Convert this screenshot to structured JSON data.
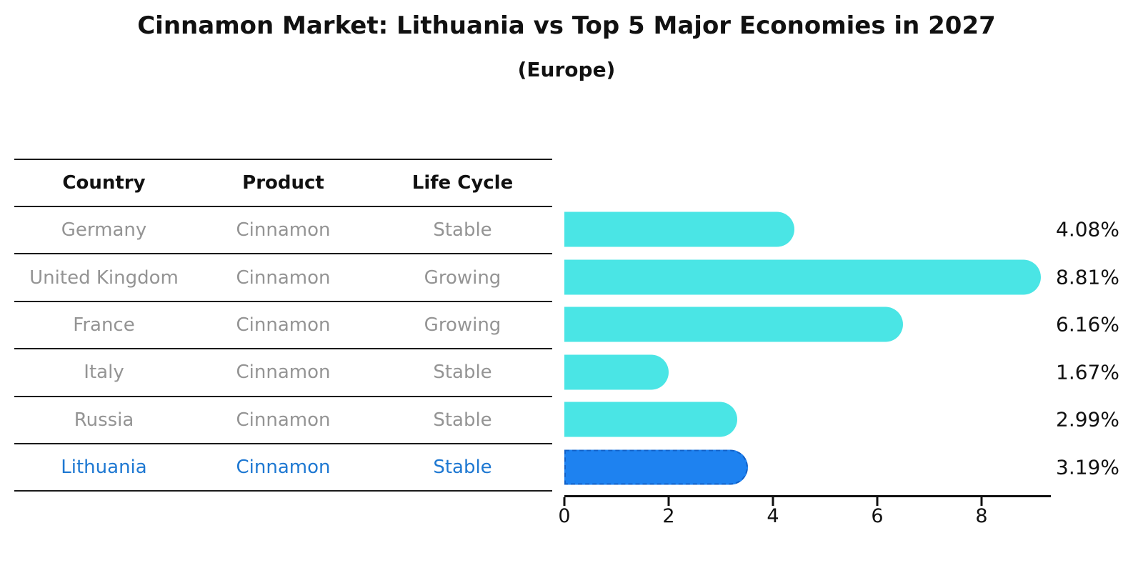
{
  "title": "Cinnamon Market: Lithuania vs Top 5 Major Economies in 2027",
  "subtitle": "(Europe)",
  "table": {
    "headers": [
      "Country",
      "Product",
      "Life Cycle"
    ],
    "rows": [
      {
        "country": "Germany",
        "product": "Cinnamon",
        "life_cycle": "Stable",
        "highlight": false
      },
      {
        "country": "United Kingdom",
        "product": "Cinnamon",
        "life_cycle": "Growing",
        "highlight": false
      },
      {
        "country": "France",
        "product": "Cinnamon",
        "life_cycle": "Growing",
        "highlight": false
      },
      {
        "country": "Italy",
        "product": "Cinnamon",
        "life_cycle": "Stable",
        "highlight": false
      },
      {
        "country": "Russia",
        "product": "Cinnamon",
        "life_cycle": "Stable",
        "highlight": true
      }
    ],
    "highlight_row": {
      "country": "Lithuania",
      "product": "Cinnamon",
      "life_cycle": "Stable"
    }
  },
  "chart_data": {
    "type": "bar",
    "orientation": "horizontal",
    "categories": [
      "Germany",
      "United Kingdom",
      "France",
      "Italy",
      "Russia",
      "Lithuania"
    ],
    "values": [
      4.08,
      8.81,
      6.16,
      1.67,
      2.99,
      3.19
    ],
    "value_labels": [
      "4.08%",
      "8.81%",
      "6.16%",
      "1.67%",
      "2.99%",
      "3.19%"
    ],
    "highlight_index": 5,
    "xlabel": "",
    "ylabel": "",
    "xticks": [
      0,
      2,
      4,
      6,
      8
    ],
    "xlim": [
      0,
      9.3
    ],
    "grid": false,
    "legend": "none",
    "bar_color": "#4ae5e5",
    "highlight_bar_color": "#1e82f0",
    "highlight_bar_edge_color": "#1060c8",
    "highlight_text_color": "#1e78d2",
    "bar_cap_style": "rounded-right",
    "highlight_bar_style": "dashed-border"
  }
}
